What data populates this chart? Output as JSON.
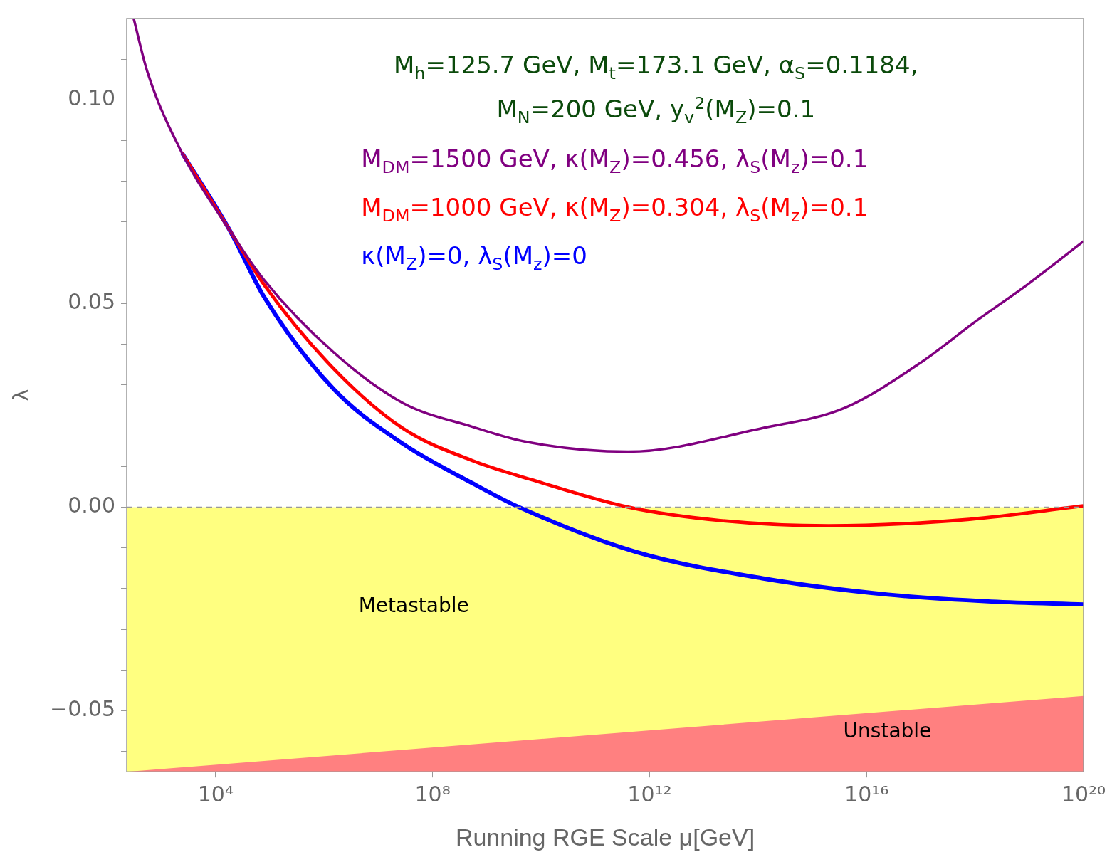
{
  "chart_data": {
    "type": "line",
    "xlabel": "Running RGE Scale μ[GeV]",
    "ylabel": "λ",
    "log": "x",
    "xlim": [
      230,
      1e+20
    ],
    "xticks": [
      {
        "value": 10000.0,
        "label": "10⁴"
      },
      {
        "value": 100000000.0,
        "label": "10⁸"
      },
      {
        "value": 1000000000000.0,
        "label": "10¹²"
      },
      {
        "value": 1e+16,
        "label": "10¹⁶"
      },
      {
        "value": 1e+20,
        "label": "10²⁰"
      }
    ],
    "ylim": [
      -0.065,
      0.12
    ],
    "yticks": [
      {
        "value": -0.06,
        "label": null
      },
      {
        "value": -0.05,
        "label": "−0.05"
      },
      {
        "value": -0.04,
        "label": null
      },
      {
        "value": -0.03,
        "label": null
      },
      {
        "value": -0.02,
        "label": null
      },
      {
        "value": -0.01,
        "label": null
      },
      {
        "value": 0,
        "label": "0.00"
      },
      {
        "value": 0.01,
        "label": null
      },
      {
        "value": 0.02,
        "label": null
      },
      {
        "value": 0.03,
        "label": null
      },
      {
        "value": 0.04,
        "label": null
      },
      {
        "value": 0.05,
        "label": "0.05"
      },
      {
        "value": 0.06,
        "label": null
      },
      {
        "value": 0.07,
        "label": null
      },
      {
        "value": 0.08,
        "label": null
      },
      {
        "value": 0.09,
        "label": null
      },
      {
        "value": 0.1,
        "label": "0.10"
      },
      {
        "value": 0.11,
        "label": null
      }
    ],
    "grid": false,
    "legend": "top",
    "series": [
      {
        "name": "M$_{DM}$=1500 GeV, κ(M$_{Z}$)=0.456, λ$_{S}$(M$_{z}$)=0.1",
        "color": "#800080",
        "x": [
          309,
          550,
          2400,
          18200,
          79400,
          1500000.0,
          28000000.0,
          520000000.0,
          5000000000.0,
          400000000000.0,
          120000000000000.0,
          4000000000000000.0,
          1e+17,
          1e+18,
          1e+19,
          1e+20
        ],
        "values": [
          0.12,
          0.107,
          0.087,
          0.068,
          0.0557,
          0.038,
          0.0256,
          0.0198,
          0.0161,
          0.0136,
          0.0194,
          0.0244,
          0.0355,
          0.0455,
          0.055,
          0.0653
        ]
      },
      {
        "name": "M$_{DM}$=1000 GeV, κ(M$_{Z}$)=0.304, λ$_{S}$(M$_{z}$)=0.1",
        "color": "#ff0000",
        "x": [
          2400,
          18200,
          79400,
          1500000.0,
          28000000.0,
          520000000.0,
          6800000000.0,
          400000000000.0,
          20000000000000.0,
          2000000000000000.0,
          7.9e+17,
          1e+20
        ],
        "values": [
          0.087,
          0.068,
          0.0545,
          0.034,
          0.0194,
          0.0115,
          0.0067,
          0,
          -0.0033,
          -0.0046,
          -0.003,
          0.0003
        ]
      },
      {
        "name": "κ(M$_{Z}$)=0, λ$_{S}$(M$_{z}$)=0",
        "color": "#0000ff",
        "x": [
          2400,
          18200,
          79400,
          1500000.0,
          28000000.0,
          520000000.0,
          3900000000.0,
          560000000000.0,
          120000000000000.0,
          2.5e+16,
          2e+18,
          1e+20
        ],
        "values": [
          0.087,
          0.068,
          0.0515,
          0.029,
          0.0156,
          0.006,
          0,
          -0.011,
          -0.0175,
          -0.0215,
          -0.0232,
          -0.0239
        ]
      },
      {
        "type": "area",
        "color": "#ff8080",
        "x": [
          230,
          1e+20
        ],
        "values": [
          -0.065,
          -0.0464
        ]
      }
    ],
    "bands": [
      {
        "axis": "y",
        "from": -0.065,
        "to": 0,
        "color": "#ffff80"
      }
    ],
    "ref_lines": [
      {
        "axis": "y",
        "value": 0,
        "color": "#999999",
        "line_style": "dashed"
      }
    ],
    "annotations": [
      "M$_{h}$=125.7 GeV, M$_{t}$=173.1 GeV, α$_{S}$=0.1184,",
      "M$_{N}$=200 GeV, y$_{v}$$^{2}$(M$_{Z}$)=0.1",
      "Metastable",
      "Unstable"
    ]
  }
}
